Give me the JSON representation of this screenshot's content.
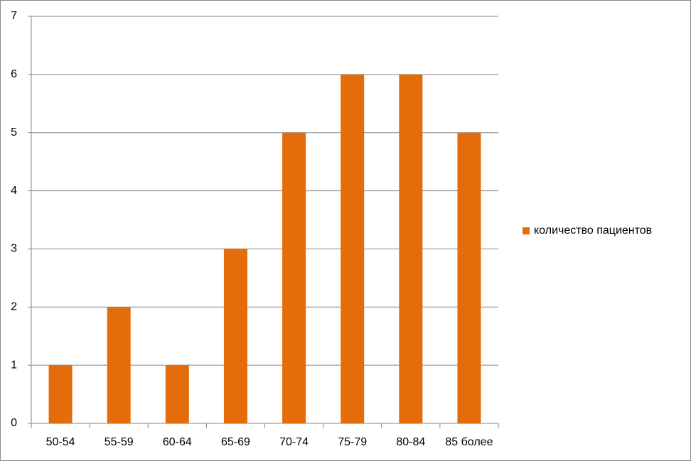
{
  "chart_data": {
    "type": "bar",
    "categories": [
      "50-54",
      "55-59",
      "60-64",
      "65-69",
      "70-74",
      "75-79",
      "80-84",
      "85 более"
    ],
    "series": [
      {
        "name": "количество пациентов",
        "color": "#e46c0a",
        "values": [
          1,
          2,
          1,
          3,
          5,
          6,
          6,
          5
        ]
      }
    ],
    "ylim": [
      0,
      7
    ],
    "yticks": [
      0,
      1,
      2,
      3,
      4,
      5,
      6,
      7
    ],
    "grid": true,
    "legend": "right"
  }
}
